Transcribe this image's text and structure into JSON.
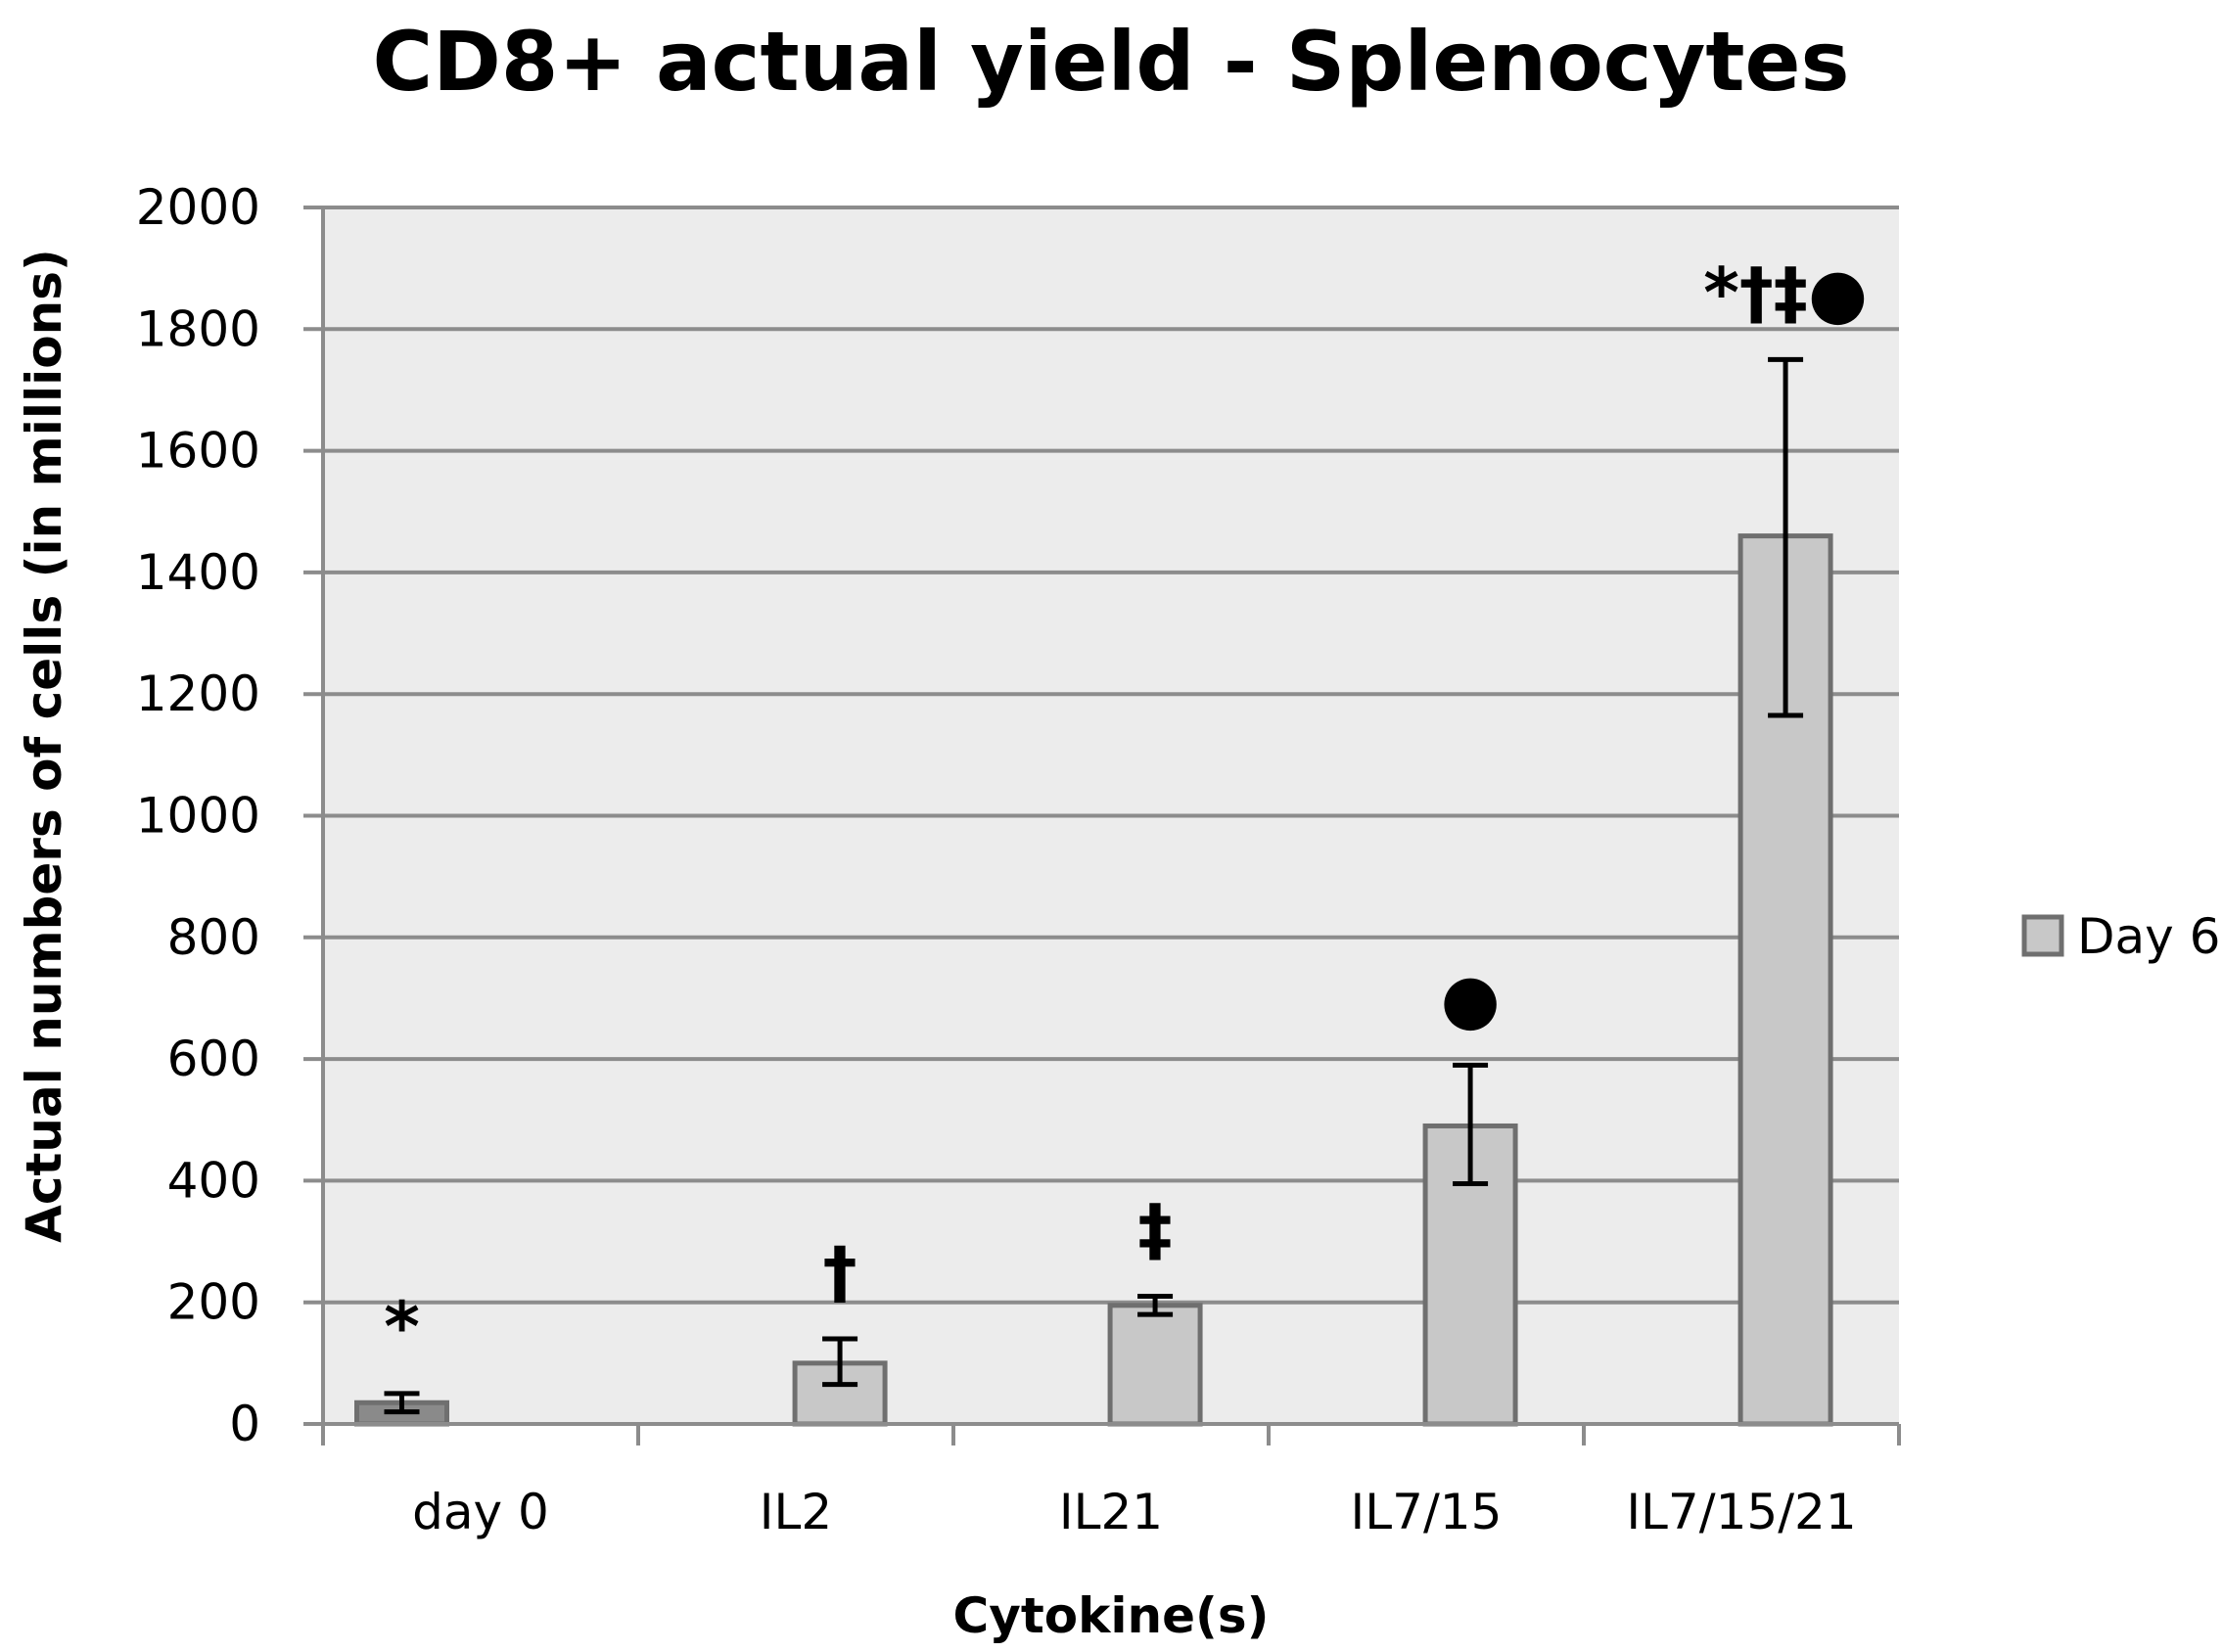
{
  "chart_data": {
    "type": "bar",
    "title": "CD8+ actual yield - Splenocytes",
    "xlabel": "Cytokine(s)",
    "ylabel": "Actual numbers of cells (in millions)",
    "categories": [
      "day 0",
      "IL2",
      "IL21",
      "IL7/15",
      "IL7/15/21"
    ],
    "ylim": [
      0,
      2000
    ],
    "yticks": [
      0,
      200,
      400,
      600,
      800,
      1000,
      1200,
      1400,
      1600,
      1800,
      2000
    ],
    "grid": true,
    "legend_position": "right",
    "series": [
      {
        "name": "Day 6",
        "values": [
          35,
          100,
          195,
          490,
          1460
        ],
        "error_low": [
          20,
          65,
          180,
          395,
          1165
        ],
        "error_high": [
          50,
          140,
          210,
          590,
          1750
        ],
        "annotations": [
          "*",
          "†",
          "‡",
          "●",
          "*†‡●"
        ]
      }
    ],
    "colors": {
      "plot_background": "#ececec",
      "gridline": "#8c8c8c",
      "bar_fill": "#c8c8c8",
      "bar_fill_first": "#8a8a8a",
      "bar_stroke": "#6f6f6f",
      "error_bar": "#000000"
    }
  }
}
